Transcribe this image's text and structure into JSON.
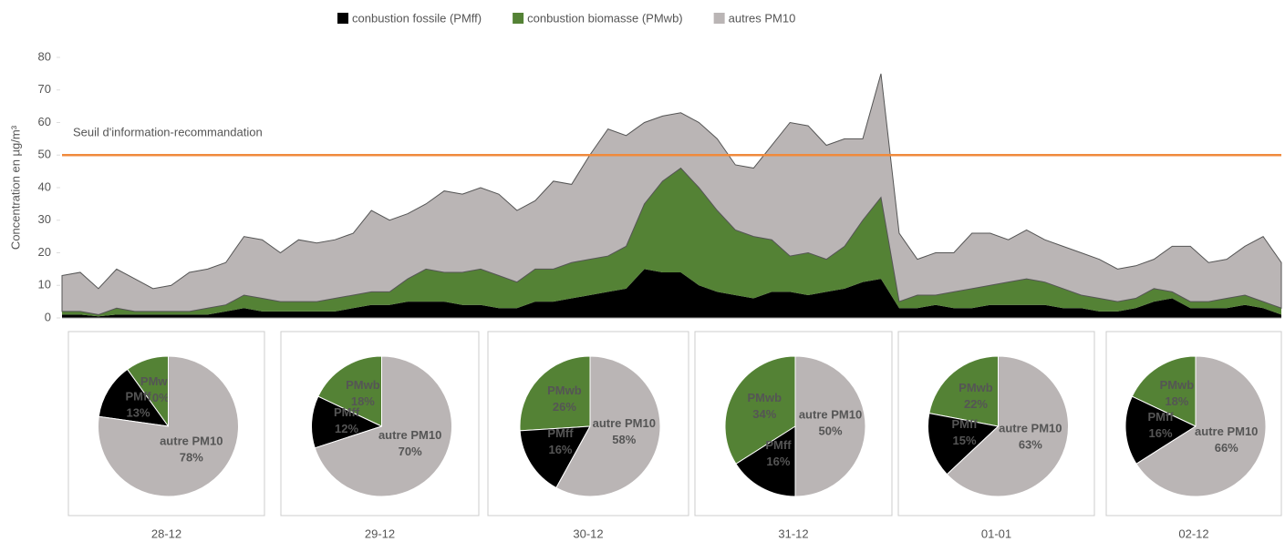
{
  "chart_data": [
    {
      "type": "area",
      "stacked": true,
      "ylabel": "Concentration en µg/m³",
      "ylim": [
        0,
        80
      ],
      "yticks": [
        0,
        10,
        20,
        30,
        40,
        50,
        60,
        70,
        80
      ],
      "annotations": [
        {
          "text": "Seuil d'information-recommandation",
          "y": 50,
          "color": "#f08a3c"
        }
      ],
      "categories": [
        null,
        null,
        null,
        null,
        null,
        null,
        null,
        null,
        null,
        null,
        null,
        null,
        null,
        null,
        null,
        null,
        null,
        null,
        null,
        null,
        null,
        null,
        null,
        null,
        null,
        null,
        null,
        null,
        null,
        null,
        null,
        null,
        null,
        null,
        null,
        null,
        null,
        null,
        null,
        null,
        null,
        null,
        null,
        null,
        null,
        null,
        null,
        null,
        null,
        null,
        null,
        null,
        null,
        null,
        null,
        null,
        null,
        null,
        null,
        null,
        null,
        null,
        null,
        null,
        null,
        null,
        null,
        null
      ],
      "series": [
        {
          "name": "conbustion fossile (PMff)",
          "color": "#000000",
          "values": [
            1,
            1,
            0.5,
            1,
            1,
            1,
            1,
            1,
            1,
            2,
            3,
            2,
            2,
            2,
            2,
            2,
            3,
            4,
            4,
            5,
            5,
            5,
            4,
            4,
            3,
            3,
            5,
            5,
            6,
            7,
            8,
            9,
            15,
            14,
            14,
            10,
            8,
            7,
            6,
            8,
            8,
            7,
            8,
            9,
            11,
            12,
            3,
            3,
            4,
            3,
            3,
            4,
            4,
            4,
            4,
            3,
            3,
            2,
            2,
            3,
            5,
            6,
            3,
            3,
            3,
            4,
            3,
            1
          ]
        },
        {
          "name": "conbustion biomasse (PMwb)",
          "color": "#548235",
          "values": [
            1,
            1,
            0.5,
            2,
            1,
            1,
            1,
            1,
            2,
            2,
            4,
            4,
            3,
            3,
            3,
            4,
            4,
            4,
            4,
            7,
            10,
            9,
            10,
            11,
            10,
            8,
            10,
            10,
            11,
            11,
            11,
            13,
            20,
            28,
            32,
            30,
            25,
            20,
            19,
            16,
            11,
            13,
            10,
            13,
            19,
            25,
            2,
            4,
            3,
            5,
            6,
            6,
            7,
            8,
            7,
            6,
            4,
            4,
            3,
            3,
            4,
            2,
            2,
            2,
            3,
            3,
            2,
            2
          ]
        },
        {
          "name": "autres PM10",
          "color": "#bab5b5",
          "values": [
            11,
            12,
            8,
            12,
            10,
            7,
            8,
            12,
            12,
            13,
            18,
            18,
            15,
            19,
            18,
            18,
            19,
            25,
            22,
            20,
            20,
            25,
            24,
            25,
            25,
            22,
            21,
            27,
            24,
            32,
            39,
            34,
            25,
            20,
            17,
            20,
            22,
            20,
            21,
            29,
            41,
            39,
            35,
            33,
            25,
            38,
            21,
            11,
            13,
            12,
            17,
            16,
            13,
            15,
            13,
            13,
            13,
            12,
            10,
            10,
            9,
            14,
            17,
            12,
            12,
            15,
            20,
            14
          ]
        }
      ]
    },
    {
      "type": "pie",
      "title": "28-12",
      "categories": [
        "PMwb",
        "PMff",
        "autre PM10"
      ],
      "values": [
        10,
        13,
        78
      ],
      "value_labels": [
        "10%",
        "13%",
        "78%"
      ],
      "colors": [
        "#548235",
        "#000000",
        "#bab5b5"
      ]
    },
    {
      "type": "pie",
      "title": "29-12",
      "categories": [
        "PMwb",
        "PMff",
        "autre PM10"
      ],
      "values": [
        18,
        12,
        70
      ],
      "value_labels": [
        "18%",
        "12%",
        "70%"
      ],
      "colors": [
        "#548235",
        "#000000",
        "#bab5b5"
      ]
    },
    {
      "type": "pie",
      "title": "30-12",
      "categories": [
        "PMwb",
        "PMff",
        "autre PM10"
      ],
      "values": [
        26,
        16,
        58
      ],
      "value_labels": [
        "26%",
        "16%",
        "58%"
      ],
      "colors": [
        "#548235",
        "#000000",
        "#bab5b5"
      ]
    },
    {
      "type": "pie",
      "title": "31-12",
      "categories": [
        "PMwb",
        "PMff",
        "autre PM10"
      ],
      "values": [
        34,
        16,
        50
      ],
      "value_labels": [
        "34%",
        "16%",
        "50%"
      ],
      "colors": [
        "#548235",
        "#000000",
        "#bab5b5"
      ]
    },
    {
      "type": "pie",
      "title": "01-01",
      "categories": [
        "PMwb",
        "PMff",
        "autre PM10"
      ],
      "values": [
        22,
        15,
        63
      ],
      "value_labels": [
        "22%",
        "15%",
        "63%"
      ],
      "colors": [
        "#548235",
        "#000000",
        "#bab5b5"
      ]
    },
    {
      "type": "pie",
      "title": "02-12",
      "categories": [
        "PMwb",
        "PMff",
        "autre PM10"
      ],
      "values": [
        18,
        16,
        66
      ],
      "value_labels": [
        "18%",
        "16%",
        "66%"
      ],
      "colors": [
        "#548235",
        "#000000",
        "#bab5b5"
      ]
    }
  ]
}
